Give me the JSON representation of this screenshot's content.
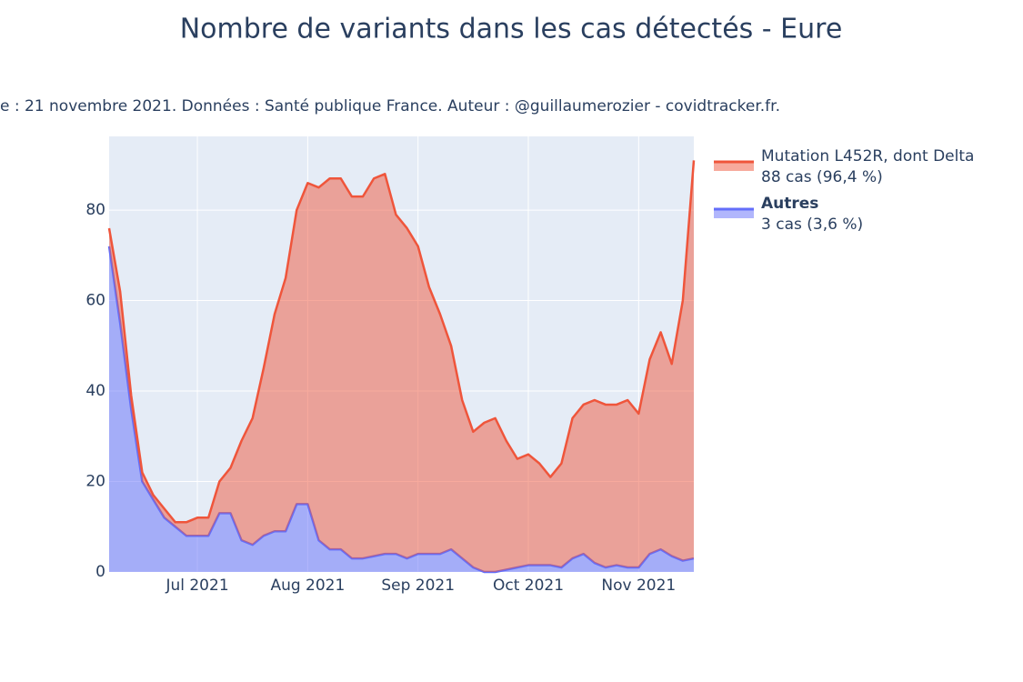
{
  "chart_data": {
    "type": "stacked_area",
    "title": "Nombre de variants dans les cas détectés - Eure",
    "subtitle": "e : 21 novembre 2021. Données : Santé publique France. Auteur : @guillaumerozier - covidtracker.fr.",
    "categories": [
      null,
      null,
      null,
      null,
      null,
      null,
      null,
      null,
      "Jul 2021",
      null,
      null,
      null,
      null,
      null,
      null,
      null,
      null,
      null,
      "Aug 2021",
      null,
      null,
      null,
      null,
      null,
      null,
      null,
      null,
      null,
      "Sep 2021",
      null,
      null,
      null,
      null,
      null,
      null,
      null,
      null,
      null,
      "Oct 2021",
      null,
      null,
      null,
      null,
      null,
      null,
      null,
      null,
      null,
      "Nov 2021",
      null,
      null,
      null,
      null,
      null
    ],
    "series": [
      {
        "name": "Mutation L452R, dont Delta",
        "note": "88 cas (96,4 %)",
        "color": "#ef553b",
        "values": [
          4,
          7,
          3,
          2,
          1,
          2,
          1,
          3,
          4,
          4,
          7,
          10,
          22,
          28,
          37,
          48,
          56,
          65,
          71,
          78,
          82,
          82,
          80,
          80,
          83.5,
          84,
          75,
          73,
          68,
          59,
          53,
          45,
          35,
          30,
          33,
          34,
          28.5,
          24,
          24.5,
          22.5,
          19.5,
          23,
          31,
          33,
          36,
          36,
          35.5,
          37,
          34,
          43,
          48,
          42.5,
          57.5,
          88
        ]
      },
      {
        "name": "Autres",
        "note": "3 cas (3,6 %)",
        "color": "#636efa",
        "values": [
          72,
          55,
          36,
          20,
          16,
          12,
          10,
          8,
          8,
          8,
          13,
          13,
          7,
          6,
          8,
          9,
          9,
          15,
          15,
          7,
          5,
          5,
          3,
          3,
          3.5,
          4,
          4,
          3,
          4,
          4,
          4,
          5,
          3,
          1,
          0,
          0,
          0.5,
          1,
          1.5,
          1.5,
          1.5,
          1,
          3,
          4,
          2,
          1,
          1.5,
          1,
          1,
          4,
          5,
          3.5,
          2.5,
          3
        ]
      }
    ],
    "ylim": [
      0,
      96.3
    ],
    "yticks": [
      0,
      20,
      40,
      60,
      80
    ],
    "grid": true,
    "plot_bgcolor": "#e5ecf6"
  }
}
